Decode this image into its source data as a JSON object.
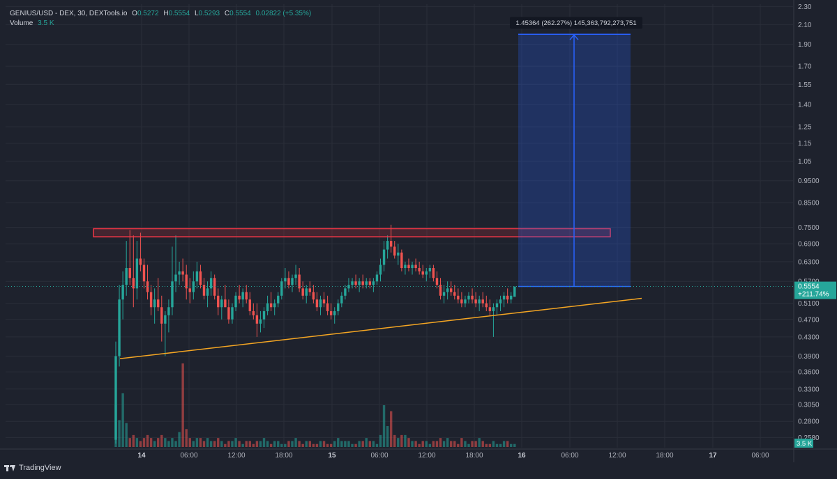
{
  "legend": {
    "symbol": "GENIUS/USD - DEX, 30, DEXTools.io",
    "o_label": "O",
    "o_value": "0.5272",
    "h_label": "H",
    "h_value": "0.5554",
    "l_label": "L",
    "l_value": "0.5293",
    "c_label": "C",
    "c_value": "0.5554",
    "change": "0.02822 (+5.35%)",
    "volume_label": "Volume",
    "volume_value": "3.5 K"
  },
  "branding": {
    "name": "TradingView"
  },
  "colors": {
    "background": "#1e222d",
    "up": "#26a69a",
    "down": "#ef5350",
    "trendline": "#f5a623",
    "resistance": "#f23645",
    "projection": "#2962ff"
  },
  "chart_data": {
    "type": "candlestick",
    "y_scale": "log",
    "ylim": [
      0.245,
      2.33
    ],
    "x_tick_labels": [
      "14",
      "06:00",
      "12:00",
      "18:00",
      "15",
      "06:00",
      "12:00",
      "18:00",
      "16",
      "06:00",
      "12:00",
      "18:00",
      "17",
      "06:00"
    ],
    "y_tick_labels": [
      "2.30",
      "2.10",
      "1.90",
      "1.70",
      "1.55",
      "1.40",
      "1.25",
      "1.15",
      "1.05",
      "0.9500",
      "0.8500",
      "0.7500",
      "0.6900",
      "0.6300",
      "0.5700",
      "0.5100",
      "0.4700",
      "0.4300",
      "0.3900",
      "0.3600",
      "0.3300",
      "0.3050",
      "0.2800",
      "0.2580"
    ],
    "y_tick_values": [
      2.3,
      2.1,
      1.9,
      1.7,
      1.55,
      1.4,
      1.25,
      1.15,
      1.05,
      0.95,
      0.85,
      0.75,
      0.69,
      0.63,
      0.57,
      0.51,
      0.47,
      0.43,
      0.39,
      0.36,
      0.33,
      0.305,
      0.28,
      0.258
    ],
    "last_price_label": "0.5554",
    "last_change_label": "+211.74%",
    "volume_axis_label": "3.5 K",
    "last_price": 0.5554,
    "grid": true,
    "candles": [
      [
        0.255,
        0.42,
        0.25,
        0.39
      ],
      [
        0.39,
        0.56,
        0.37,
        0.52
      ],
      [
        0.52,
        0.6,
        0.47,
        0.56
      ],
      [
        0.56,
        0.7,
        0.53,
        0.61
      ],
      [
        0.61,
        0.74,
        0.56,
        0.58
      ],
      [
        0.58,
        0.72,
        0.5,
        0.55
      ],
      [
        0.55,
        0.7,
        0.52,
        0.64
      ],
      [
        0.64,
        0.73,
        0.6,
        0.62
      ],
      [
        0.62,
        0.64,
        0.55,
        0.57
      ],
      [
        0.57,
        0.62,
        0.52,
        0.54
      ],
      [
        0.54,
        0.56,
        0.48,
        0.5
      ],
      [
        0.5,
        0.55,
        0.46,
        0.52
      ],
      [
        0.52,
        0.58,
        0.49,
        0.5
      ],
      [
        0.5,
        0.53,
        0.42,
        0.46
      ],
      [
        0.46,
        0.49,
        0.39,
        0.48
      ],
      [
        0.48,
        0.52,
        0.44,
        0.5
      ],
      [
        0.5,
        0.68,
        0.48,
        0.57
      ],
      [
        0.57,
        0.72,
        0.54,
        0.59
      ],
      [
        0.59,
        0.63,
        0.56,
        0.6
      ],
      [
        0.6,
        0.64,
        0.57,
        0.59
      ],
      [
        0.59,
        0.62,
        0.52,
        0.55
      ],
      [
        0.55,
        0.58,
        0.51,
        0.54
      ],
      [
        0.54,
        0.6,
        0.52,
        0.57
      ],
      [
        0.57,
        0.63,
        0.55,
        0.6
      ],
      [
        0.6,
        0.62,
        0.55,
        0.56
      ],
      [
        0.56,
        0.58,
        0.52,
        0.53
      ],
      [
        0.53,
        0.57,
        0.5,
        0.55
      ],
      [
        0.55,
        0.6,
        0.53,
        0.58
      ],
      [
        0.58,
        0.59,
        0.52,
        0.53
      ],
      [
        0.53,
        0.55,
        0.48,
        0.5
      ],
      [
        0.5,
        0.53,
        0.47,
        0.52
      ],
      [
        0.52,
        0.56,
        0.5,
        0.5
      ],
      [
        0.5,
        0.52,
        0.46,
        0.47
      ],
      [
        0.47,
        0.51,
        0.46,
        0.5
      ],
      [
        0.5,
        0.54,
        0.49,
        0.53
      ],
      [
        0.53,
        0.56,
        0.51,
        0.52
      ],
      [
        0.52,
        0.55,
        0.5,
        0.54
      ],
      [
        0.54,
        0.56,
        0.51,
        0.52
      ],
      [
        0.52,
        0.54,
        0.48,
        0.49
      ],
      [
        0.49,
        0.51,
        0.47,
        0.48
      ],
      [
        0.48,
        0.51,
        0.43,
        0.46
      ],
      [
        0.46,
        0.49,
        0.44,
        0.47
      ],
      [
        0.47,
        0.5,
        0.45,
        0.49
      ],
      [
        0.49,
        0.53,
        0.48,
        0.51
      ],
      [
        0.51,
        0.54,
        0.49,
        0.5
      ],
      [
        0.5,
        0.52,
        0.48,
        0.51
      ],
      [
        0.51,
        0.54,
        0.5,
        0.53
      ],
      [
        0.53,
        0.58,
        0.52,
        0.57
      ],
      [
        0.57,
        0.61,
        0.55,
        0.58
      ],
      [
        0.58,
        0.6,
        0.55,
        0.56
      ],
      [
        0.56,
        0.59,
        0.54,
        0.58
      ],
      [
        0.58,
        0.62,
        0.56,
        0.59
      ],
      [
        0.59,
        0.61,
        0.54,
        0.55
      ],
      [
        0.55,
        0.57,
        0.52,
        0.53
      ],
      [
        0.53,
        0.56,
        0.51,
        0.55
      ],
      [
        0.55,
        0.57,
        0.53,
        0.54
      ],
      [
        0.54,
        0.56,
        0.51,
        0.52
      ],
      [
        0.52,
        0.54,
        0.49,
        0.5
      ],
      [
        0.5,
        0.53,
        0.48,
        0.52
      ],
      [
        0.52,
        0.54,
        0.5,
        0.51
      ],
      [
        0.51,
        0.53,
        0.48,
        0.49
      ],
      [
        0.49,
        0.51,
        0.47,
        0.48
      ],
      [
        0.48,
        0.5,
        0.46,
        0.49
      ],
      [
        0.49,
        0.52,
        0.48,
        0.51
      ],
      [
        0.51,
        0.54,
        0.5,
        0.53
      ],
      [
        0.53,
        0.56,
        0.52,
        0.55
      ],
      [
        0.55,
        0.58,
        0.54,
        0.56
      ],
      [
        0.56,
        0.58,
        0.55,
        0.57
      ],
      [
        0.57,
        0.59,
        0.55,
        0.56
      ],
      [
        0.56,
        0.58,
        0.54,
        0.57
      ],
      [
        0.57,
        0.59,
        0.55,
        0.56
      ],
      [
        0.56,
        0.58,
        0.55,
        0.57
      ],
      [
        0.57,
        0.58,
        0.55,
        0.56
      ],
      [
        0.56,
        0.58,
        0.54,
        0.57
      ],
      [
        0.57,
        0.6,
        0.56,
        0.59
      ],
      [
        0.59,
        0.64,
        0.57,
        0.62
      ],
      [
        0.62,
        0.7,
        0.6,
        0.67
      ],
      [
        0.67,
        0.72,
        0.64,
        0.7
      ],
      [
        0.7,
        0.76,
        0.66,
        0.68
      ],
      [
        0.68,
        0.7,
        0.64,
        0.65
      ],
      [
        0.65,
        0.69,
        0.62,
        0.66
      ],
      [
        0.66,
        0.67,
        0.6,
        0.61
      ],
      [
        0.61,
        0.63,
        0.59,
        0.62
      ],
      [
        0.62,
        0.64,
        0.6,
        0.61
      ],
      [
        0.61,
        0.63,
        0.59,
        0.62
      ],
      [
        0.62,
        0.64,
        0.6,
        0.61
      ],
      [
        0.61,
        0.63,
        0.59,
        0.6
      ],
      [
        0.6,
        0.62,
        0.58,
        0.59
      ],
      [
        0.59,
        0.61,
        0.57,
        0.6
      ],
      [
        0.6,
        0.62,
        0.58,
        0.61
      ],
      [
        0.61,
        0.62,
        0.57,
        0.58
      ],
      [
        0.58,
        0.6,
        0.55,
        0.56
      ],
      [
        0.56,
        0.58,
        0.52,
        0.53
      ],
      [
        0.53,
        0.56,
        0.51,
        0.54
      ],
      [
        0.54,
        0.57,
        0.52,
        0.55
      ],
      [
        0.55,
        0.57,
        0.53,
        0.54
      ],
      [
        0.54,
        0.56,
        0.52,
        0.53
      ],
      [
        0.53,
        0.55,
        0.51,
        0.52
      ],
      [
        0.52,
        0.54,
        0.5,
        0.51
      ],
      [
        0.51,
        0.53,
        0.5,
        0.52
      ],
      [
        0.52,
        0.54,
        0.51,
        0.53
      ],
      [
        0.53,
        0.55,
        0.51,
        0.52
      ],
      [
        0.52,
        0.54,
        0.5,
        0.51
      ],
      [
        0.51,
        0.53,
        0.49,
        0.52
      ],
      [
        0.52,
        0.54,
        0.5,
        0.51
      ],
      [
        0.51,
        0.53,
        0.49,
        0.5
      ],
      [
        0.5,
        0.52,
        0.48,
        0.49
      ],
      [
        0.49,
        0.51,
        0.43,
        0.5
      ],
      [
        0.5,
        0.52,
        0.48,
        0.51
      ],
      [
        0.51,
        0.53,
        0.49,
        0.52
      ],
      [
        0.52,
        0.54,
        0.5,
        0.53
      ],
      [
        0.53,
        0.55,
        0.51,
        0.52
      ],
      [
        0.52,
        0.54,
        0.51,
        0.53
      ],
      [
        0.5272,
        0.5554,
        0.5293,
        0.5554
      ]
    ],
    "volumes": [
      14,
      9,
      18,
      8,
      3,
      4,
      3,
      2,
      3,
      4,
      3,
      2,
      3,
      4,
      3,
      2,
      3,
      2,
      5,
      28,
      6,
      3,
      2,
      3,
      3,
      2,
      3,
      2,
      2,
      3,
      2,
      1,
      2,
      2,
      3,
      2,
      1,
      2,
      2,
      1,
      2,
      2,
      3,
      2,
      1,
      2,
      2,
      1,
      1,
      2,
      2,
      3,
      2,
      1,
      2,
      2,
      1,
      1,
      2,
      2,
      1,
      1,
      2,
      3,
      2,
      2,
      2,
      1,
      1,
      2,
      2,
      3,
      2,
      2,
      1,
      4,
      14,
      7,
      12,
      4,
      3,
      4,
      4,
      3,
      2,
      2,
      1,
      2,
      2,
      1,
      2,
      2,
      3,
      2,
      3,
      2,
      2,
      1,
      3,
      2,
      1,
      2,
      2,
      3,
      2,
      1,
      1,
      2,
      1,
      1,
      2,
      2,
      1,
      1,
      2
    ],
    "resistance_zone": [
      0.715,
      0.745
    ],
    "trendline": {
      "from_price": 0.385,
      "to_price": 0.523
    },
    "projection": {
      "base": 0.5554,
      "target": 2.0,
      "label": "1.45364 (262.27%) 145,363,792,273,751"
    }
  }
}
